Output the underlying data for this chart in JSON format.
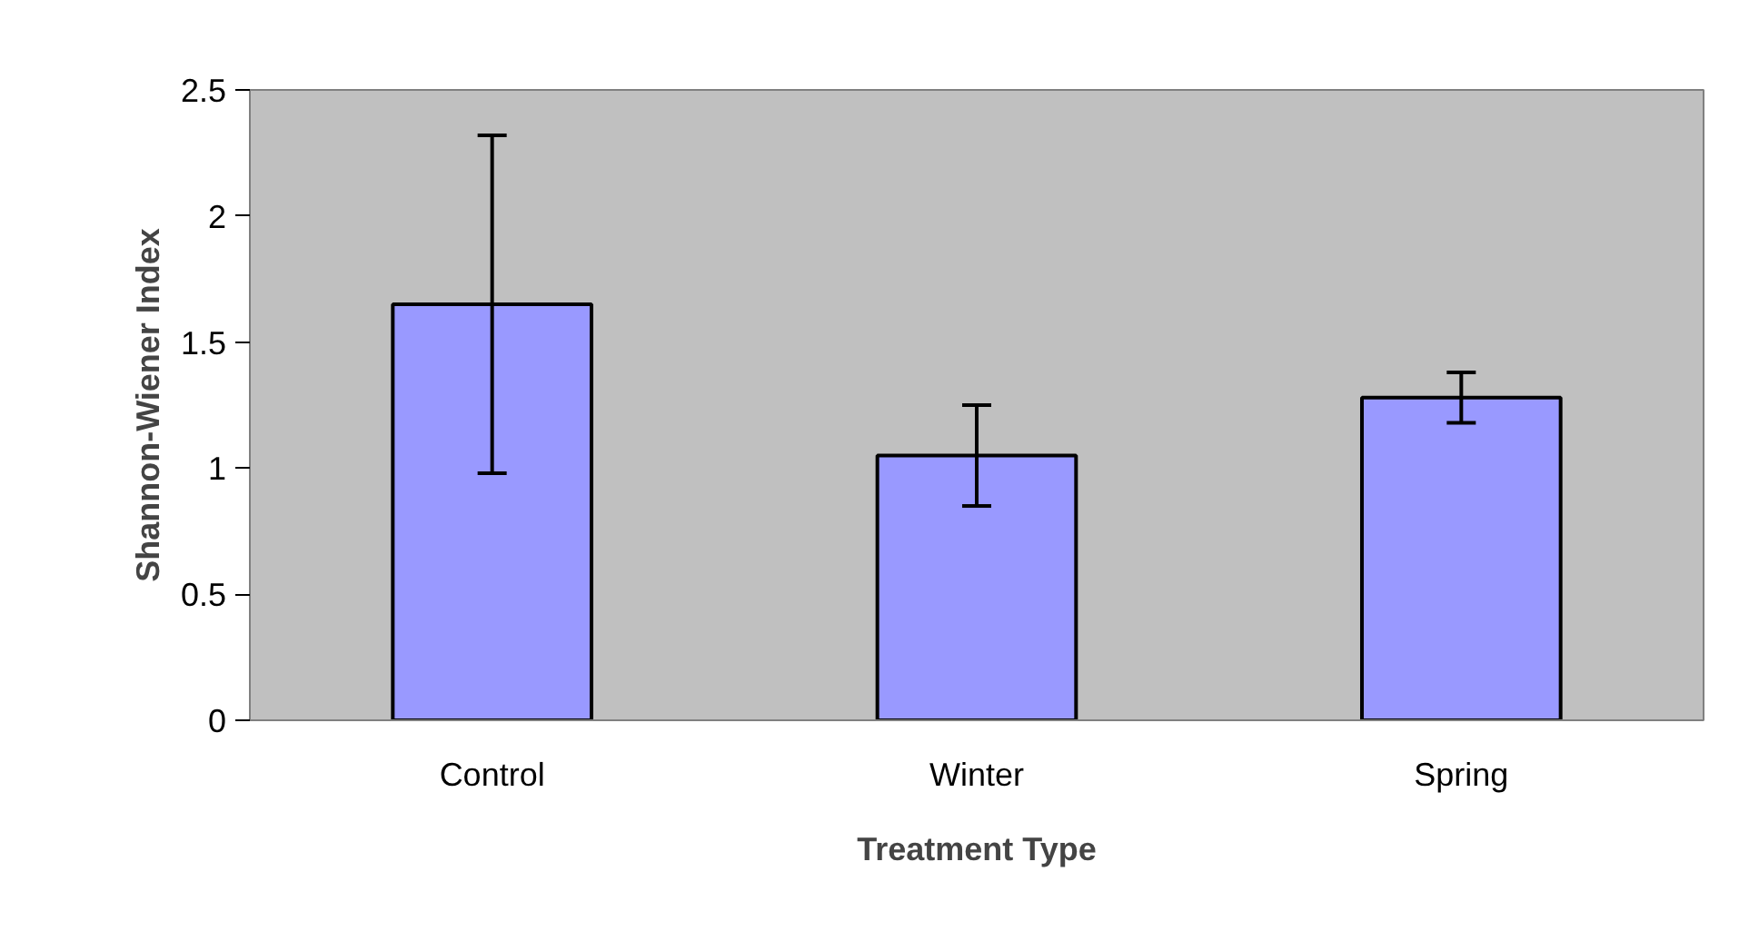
{
  "chart_data": {
    "type": "bar",
    "xlabel": "Treatment Type",
    "ylabel": "Shannon-Wiener Index",
    "categories": [
      "Control",
      "Winter",
      "Spring"
    ],
    "values": [
      1.65,
      1.05,
      1.28
    ],
    "errors": [
      0.67,
      0.2,
      0.1
    ],
    "color": "#9999ff",
    "ylim": [
      0,
      2.5
    ],
    "yticks": [
      0,
      0.5,
      1,
      1.5,
      2,
      2.5
    ],
    "grid": false
  }
}
